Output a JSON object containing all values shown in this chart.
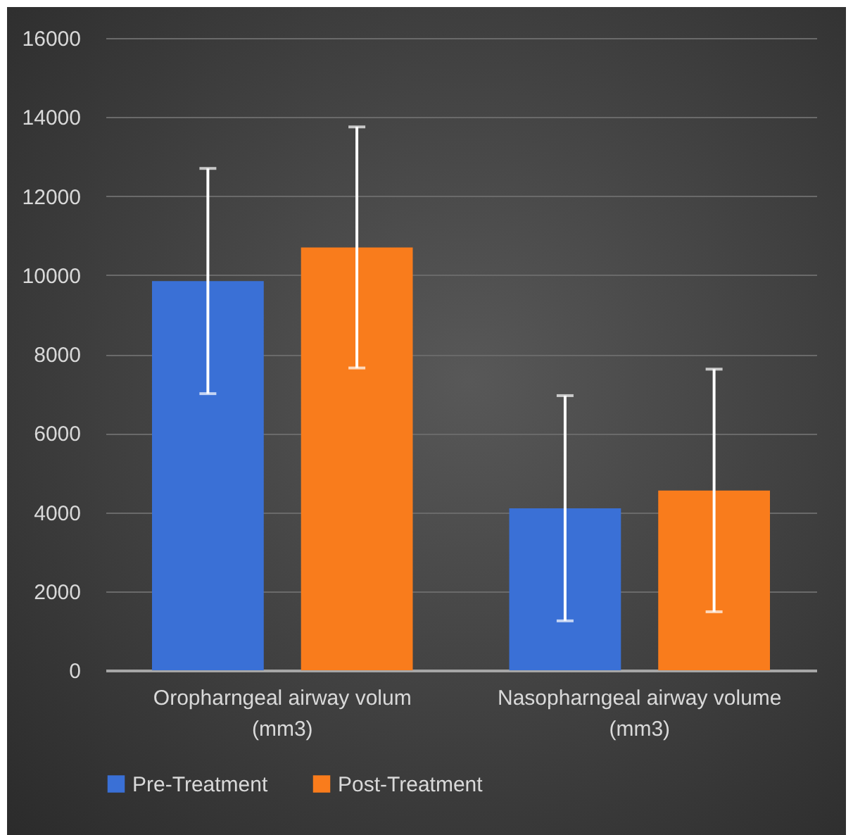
{
  "chart_data": {
    "type": "bar",
    "categories": [
      "Oropharngeal airway volum (mm3)",
      "Nasopharngeal airway volume (mm3)"
    ],
    "series": [
      {
        "name": "Pre-Treatment",
        "color": "#3a70d6",
        "values": [
          9850,
          4100
        ],
        "errors": [
          2850,
          2850
        ]
      },
      {
        "name": "Post-Treatment",
        "color": "#f97c1c",
        "values": [
          10700,
          4550
        ],
        "errors": [
          3050,
          3070
        ]
      }
    ],
    "ylim": [
      0,
      16000
    ],
    "yticks": [
      0,
      2000,
      4000,
      6000,
      8000,
      10000,
      12000,
      14000,
      16000
    ],
    "grid": "y",
    "legend": "bottom"
  }
}
